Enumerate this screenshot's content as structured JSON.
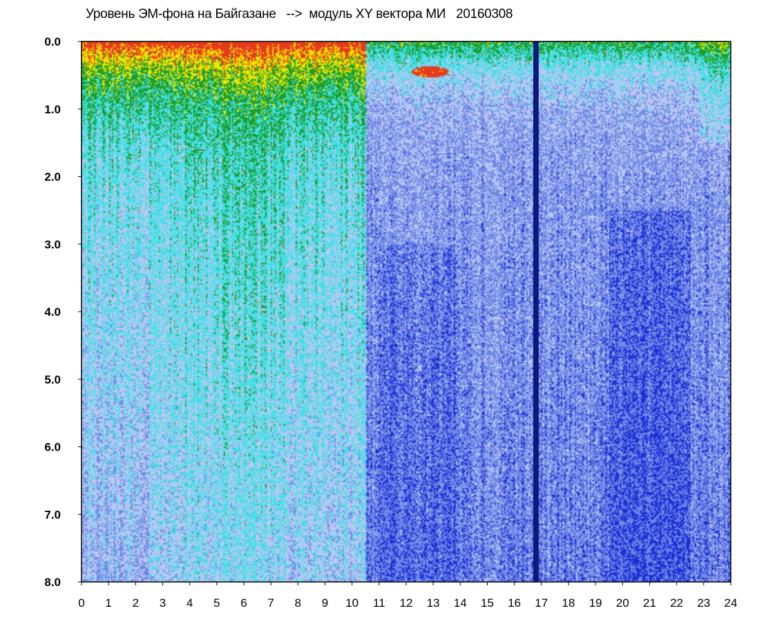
{
  "chart_data": {
    "type": "heatmap",
    "title": "Уровень ЭМ-фона на Байгазане   -->  модуль XY вектора МИ   20160308",
    "xlabel": "",
    "ylabel": "",
    "xlim": [
      0,
      24
    ],
    "ylim": [
      0,
      8
    ],
    "y_axis_inverted": true,
    "x_ticks": [
      "0",
      "1",
      "2",
      "3",
      "4",
      "5",
      "6",
      "7",
      "8",
      "9",
      "10",
      "11",
      "12",
      "13",
      "14",
      "15",
      "16",
      "17",
      "18",
      "19",
      "20",
      "21",
      "22",
      "23",
      "24"
    ],
    "y_ticks": [
      "0.0",
      "1.0",
      "2.0",
      "3.0",
      "4.0",
      "5.0",
      "6.0",
      "7.0",
      "8.0"
    ],
    "colors": {
      "very_low": "#1a2ed6",
      "low": "#6f86e6",
      "light": "#b9c8f2",
      "medium": "#3fe0e6",
      "elevated": "#1a9e2a",
      "high": "#f2e600",
      "very_high": "#e63a1e",
      "gap": "#0b1a7a"
    },
    "zones": [
      {
        "x": [
          0,
          10.5
        ],
        "level": "medium-to-high near top",
        "intensity_at_top": "very_high",
        "intensity_at_bottom": "medium"
      },
      {
        "x": [
          10.5,
          24
        ],
        "level": "low",
        "intensity_at_top": "elevated",
        "intensity_at_bottom": "very_low"
      }
    ],
    "data_gap": {
      "x": [
        16.7,
        16.9
      ]
    },
    "blobs": [
      {
        "x": 12.9,
        "y": 0.45,
        "level": "very_high"
      }
    ]
  }
}
